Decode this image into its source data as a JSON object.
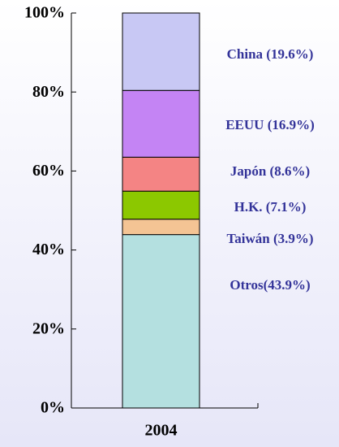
{
  "chart_data": {
    "type": "stacked_bar",
    "categories": [
      "2004"
    ],
    "series": [
      {
        "name": "Otros(43.9%)",
        "color": "#b4e0e0",
        "values": [
          43.9
        ]
      },
      {
        "name": "Taiwán (3.9%)",
        "color": "#f4c494",
        "values": [
          3.9
        ]
      },
      {
        "name": "H.K. (7.1%)",
        "color": "#8cc800",
        "values": [
          7.1
        ]
      },
      {
        "name": "Japón (8.6%)",
        "color": "#f48484",
        "values": [
          8.6
        ]
      },
      {
        "name": "EEUU (16.9%)",
        "color": "#c484f4",
        "values": [
          16.9
        ]
      },
      {
        "name": "China (19.6%)",
        "color": "#c8c8f4",
        "values": [
          19.6
        ]
      }
    ],
    "ylim": [
      0,
      100
    ],
    "yticks": [
      {
        "value": 0,
        "label": "0%"
      },
      {
        "value": 20,
        "label": "20%"
      },
      {
        "value": 40,
        "label": "40%"
      },
      {
        "value": 60,
        "label": "60%"
      },
      {
        "value": 80,
        "label": "80%"
      },
      {
        "value": 100,
        "label": "100%"
      }
    ]
  }
}
